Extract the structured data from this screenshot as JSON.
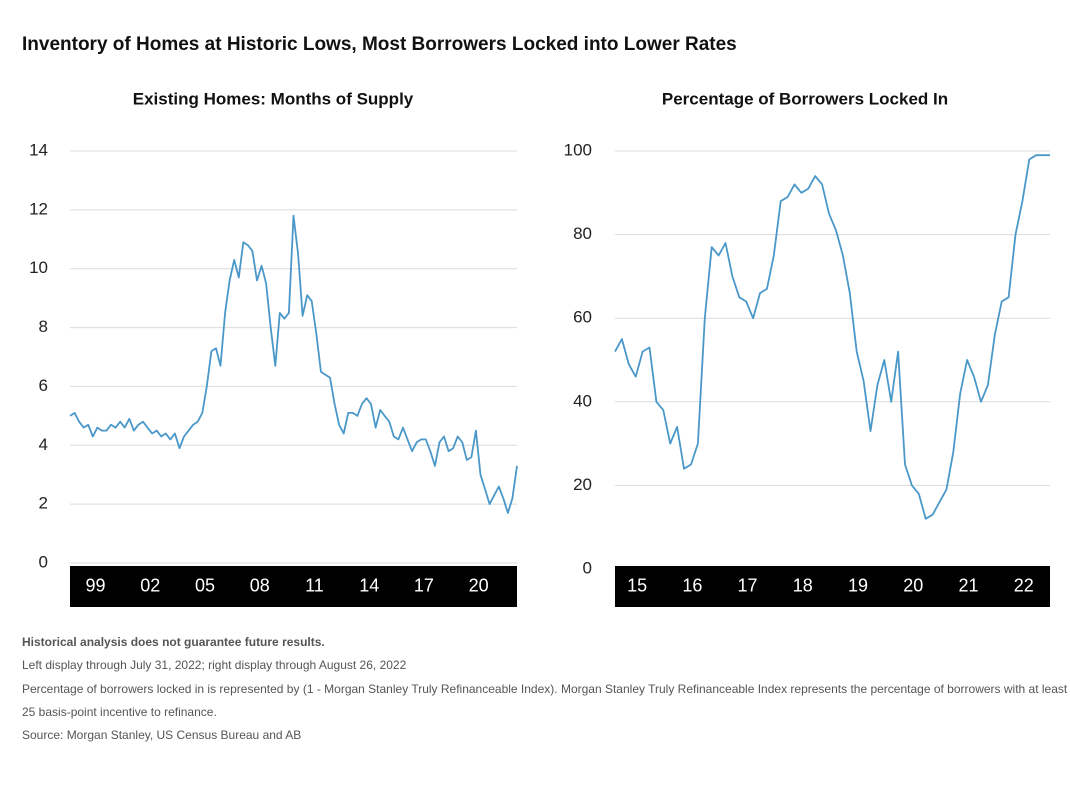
{
  "title": "Inventory of Homes at Historic Lows, Most Borrowers Locked into Lower Rates",
  "chart_data": [
    {
      "type": "line",
      "title": "Existing Homes: Months of Supply",
      "color": "#4a98c9",
      "grid": true,
      "xlim": [
        1998,
        2022.5
      ],
      "ylim": [
        0,
        14
      ],
      "yticks": [
        0,
        2,
        4,
        6,
        8,
        10,
        12,
        14
      ],
      "xticks": [
        {
          "value": 1999,
          "label": "99"
        },
        {
          "value": 2002,
          "label": "02"
        },
        {
          "value": 2005,
          "label": "05"
        },
        {
          "value": 2008,
          "label": "08"
        },
        {
          "value": 2011,
          "label": "11"
        },
        {
          "value": 2014,
          "label": "14"
        },
        {
          "value": 2017,
          "label": "17"
        },
        {
          "value": 2020,
          "label": "20"
        }
      ],
      "x": [
        1998,
        1998.25,
        1998.5,
        1998.75,
        1999,
        1999.25,
        1999.5,
        1999.75,
        2000,
        2000.25,
        2000.5,
        2000.75,
        2001,
        2001.25,
        2001.5,
        2001.75,
        2002,
        2002.25,
        2002.5,
        2002.75,
        2003,
        2003.25,
        2003.5,
        2003.75,
        2004,
        2004.25,
        2004.5,
        2004.75,
        2005,
        2005.25,
        2005.5,
        2005.75,
        2006,
        2006.25,
        2006.5,
        2006.75,
        2007,
        2007.25,
        2007.5,
        2007.75,
        2008,
        2008.25,
        2008.5,
        2008.75,
        2009,
        2009.25,
        2009.5,
        2009.75,
        2010,
        2010.25,
        2010.5,
        2010.75,
        2011,
        2011.25,
        2011.5,
        2011.75,
        2012,
        2012.25,
        2012.5,
        2012.75,
        2013,
        2013.25,
        2013.5,
        2013.75,
        2014,
        2014.25,
        2014.5,
        2014.75,
        2015,
        2015.25,
        2015.5,
        2015.75,
        2016,
        2016.25,
        2016.5,
        2016.75,
        2017,
        2017.25,
        2017.5,
        2017.75,
        2018,
        2018.25,
        2018.5,
        2018.75,
        2019,
        2019.25,
        2019.5,
        2019.75,
        2020,
        2020.25,
        2020.5,
        2020.75,
        2021,
        2021.25,
        2021.5,
        2021.75,
        2022,
        2022.25,
        2022.5
      ],
      "values": [
        5.0,
        5.1,
        4.8,
        4.6,
        4.7,
        4.3,
        4.6,
        4.5,
        4.5,
        4.7,
        4.6,
        4.8,
        4.6,
        4.9,
        4.5,
        4.7,
        4.8,
        4.6,
        4.4,
        4.5,
        4.3,
        4.4,
        4.2,
        4.4,
        3.9,
        4.3,
        4.5,
        4.7,
        4.8,
        5.1,
        6.0,
        7.2,
        7.3,
        6.7,
        8.5,
        9.6,
        10.3,
        9.7,
        10.9,
        10.8,
        10.6,
        9.6,
        10.1,
        9.5,
        8.0,
        6.7,
        8.5,
        8.3,
        8.5,
        11.8,
        10.5,
        8.4,
        9.1,
        8.9,
        7.8,
        6.5,
        6.4,
        6.3,
        5.4,
        4.7,
        4.4,
        5.1,
        5.1,
        5.0,
        5.4,
        5.6,
        5.4,
        4.6,
        5.2,
        5.0,
        4.8,
        4.3,
        4.2,
        4.6,
        4.2,
        3.8,
        4.1,
        4.2,
        4.2,
        3.8,
        3.3,
        4.1,
        4.3,
        3.8,
        3.9,
        4.3,
        4.1,
        3.5,
        3.6,
        4.5,
        3.0,
        2.5,
        2.0,
        2.3,
        2.6,
        2.2,
        1.7,
        2.2,
        3.3
      ]
    },
    {
      "type": "line",
      "title": "Percentage of Borrowers Locked In",
      "color": "#4a98c9",
      "grid": true,
      "xlim": [
        2015,
        2022.875
      ],
      "ylim": [
        0,
        100
      ],
      "yticks": [
        0,
        20,
        40,
        60,
        80,
        100
      ],
      "xticks": [
        {
          "value": 2015,
          "label": "15"
        },
        {
          "value": 2016,
          "label": "16"
        },
        {
          "value": 2017,
          "label": "17"
        },
        {
          "value": 2018,
          "label": "18"
        },
        {
          "value": 2019,
          "label": "19"
        },
        {
          "value": 2020,
          "label": "20"
        },
        {
          "value": 2021,
          "label": "21"
        },
        {
          "value": 2022,
          "label": "22"
        }
      ],
      "x": [
        2015,
        2015.125,
        2015.25,
        2015.375,
        2015.5,
        2015.625,
        2015.75,
        2015.875,
        2016,
        2016.125,
        2016.25,
        2016.375,
        2016.5,
        2016.625,
        2016.75,
        2016.875,
        2017,
        2017.125,
        2017.25,
        2017.375,
        2017.5,
        2017.625,
        2017.75,
        2017.875,
        2018,
        2018.125,
        2018.25,
        2018.375,
        2018.5,
        2018.625,
        2018.75,
        2018.875,
        2019,
        2019.125,
        2019.25,
        2019.375,
        2019.5,
        2019.625,
        2019.75,
        2019.875,
        2020,
        2020.125,
        2020.25,
        2020.375,
        2020.5,
        2020.625,
        2020.75,
        2020.875,
        2021,
        2021.125,
        2021.25,
        2021.375,
        2021.5,
        2021.625,
        2021.75,
        2021.875,
        2022,
        2022.125,
        2022.25,
        2022.375,
        2022.5,
        2022.625,
        2022.75,
        2022.875
      ],
      "values": [
        52,
        55,
        49,
        46,
        52,
        53,
        40,
        38,
        30,
        34,
        24,
        25,
        30,
        60,
        77,
        75,
        78,
        70,
        65,
        64,
        60,
        66,
        67,
        75,
        88,
        89,
        92,
        90,
        91,
        94,
        92,
        85,
        81,
        75,
        66,
        52,
        45,
        33,
        44,
        50,
        40,
        52,
        25,
        20,
        18,
        12,
        13,
        16,
        19,
        28,
        42,
        50,
        46,
        40,
        44,
        56,
        64,
        65,
        80,
        88,
        98,
        99,
        99,
        99
      ]
    }
  ],
  "footnotes": [
    "Historical analysis does not guarantee future results.",
    "Left display through July 31, 2022; right display through August 26, 2022",
    "Percentage of borrowers locked in is represented by (1 - Morgan Stanley Truly Refinanceable Index). Morgan Stanley Truly Refinanceable Index represents the percentage of borrowers with at least a",
    "25 basis-point incentive to refinance.",
    "Source: Morgan Stanley, US Census Bureau and AB"
  ]
}
